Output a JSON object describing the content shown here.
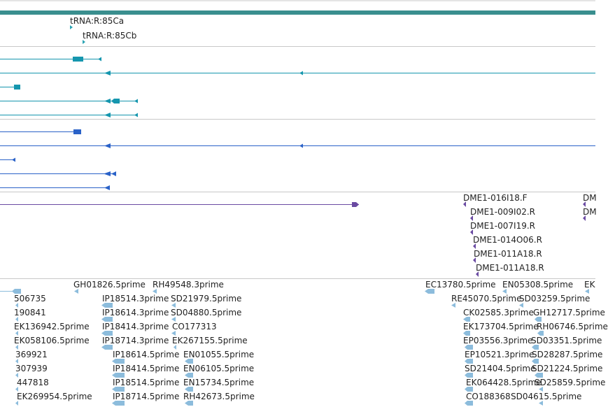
{
  "colors": {
    "top_band": "#3a8f8f",
    "divider": "#c8c8c8",
    "trna": "#2aa3b3",
    "teal_transcripts": "#1596ae",
    "blue_transcripts": "#2a62c8",
    "purple_clones": "#6a4aa2",
    "est": "#8cbcdc"
  },
  "trna_track": {
    "labels": [
      "tRNA:R:85Ca",
      "tRNA:R:85Cb"
    ]
  },
  "clone_track": {
    "labels": [
      "DME1-016I18.F",
      "DME1-009I02.R",
      "DME1-007I19.R",
      "DME1-014O06.R",
      "DME1-011A18.R",
      "DME1-011A18.R",
      "DM",
      "DM"
    ]
  },
  "est_track": {
    "labels": [
      "GH01826.5prime",
      "RH49548.3prime",
      "EC13780.5prime",
      "EN05308.5prime",
      "EK",
      "506735",
      "IP18514.3prime",
      "SD21979.5prime",
      "RE45070.5prime",
      "SD03259.5prime",
      "190841",
      "IP18614.3prime",
      "SD04880.5prime",
      "CK02585.3prime",
      "GH12717.5prime",
      "EK136942.5prime",
      "IP18414.3prime",
      "CO177313",
      "EK173704.5prime",
      "RH06746.5prime",
      "EK058106.5prime",
      "IP18714.3prime",
      "EK267155.5prime",
      "EP03556.3prime",
      "SD03351.5prime",
      "369921",
      "IP18614.5prime",
      "EN01055.5prime",
      "EP10521.3prime",
      "SD28287.5prime",
      "307939",
      "IP18414.5prime",
      "EN06105.5prime",
      "SD21404.5prime",
      "SD21224.5prime",
      "447818",
      "IP18514.5prime",
      "EN15734.5prime",
      "EK064428.5prime",
      "SD25859.5prime",
      "EK269954.5prime",
      "IP18714.5prime",
      "RH42673.5prime",
      "CO188368",
      "SD04615.5prime"
    ]
  }
}
